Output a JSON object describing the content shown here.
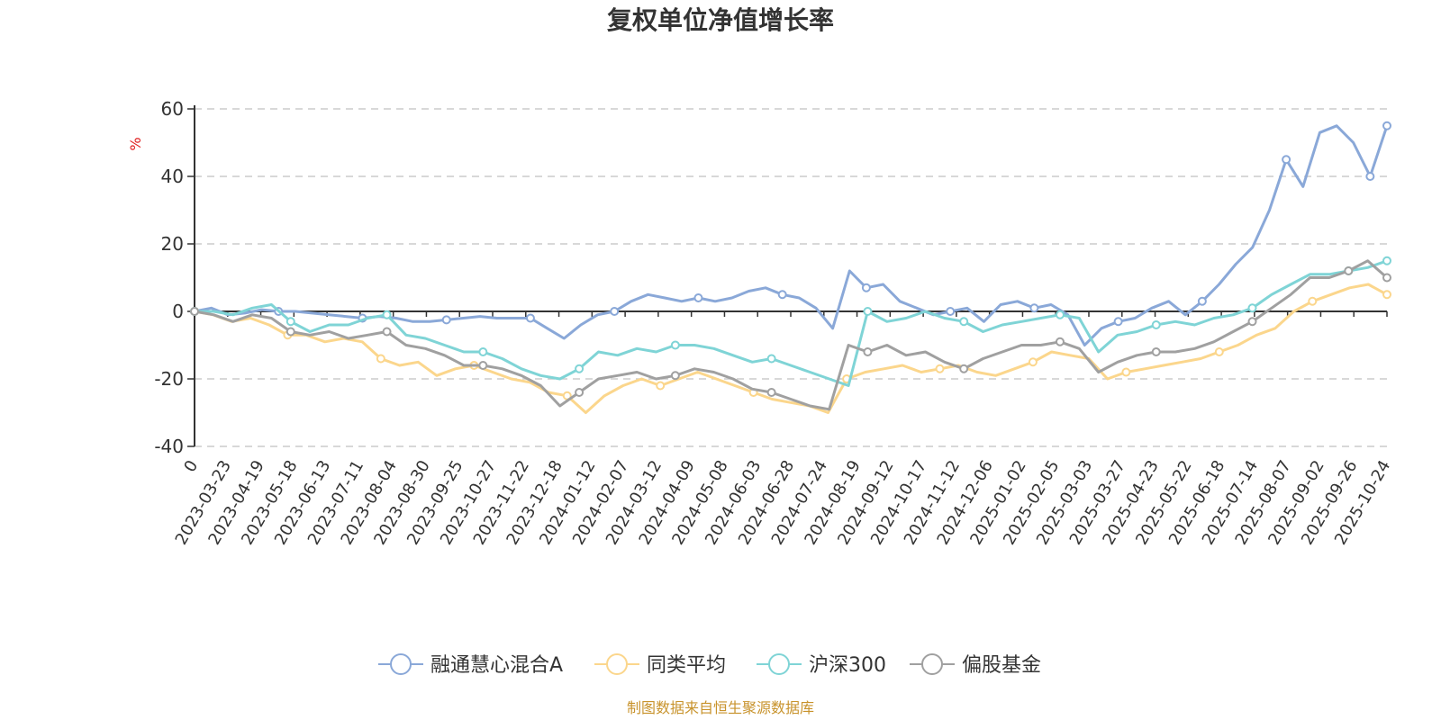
{
  "chart_data": {
    "type": "line",
    "title": "复权单位净值增长率",
    "ylabel": "%",
    "xlabel": "",
    "ylim": [
      -40,
      60
    ],
    "yticks": [
      60,
      40,
      20,
      0,
      -20,
      -40
    ],
    "x_ticks": [
      "0",
      "2023-03-23",
      "2023-04-19",
      "2023-05-18",
      "2023-06-13",
      "2023-07-11",
      "2023-08-04",
      "2023-08-30",
      "2023-09-25",
      "2023-10-27",
      "2023-11-22",
      "2023-12-18",
      "2024-01-12",
      "2024-02-07",
      "2024-03-12",
      "2024-04-09",
      "2024-05-08",
      "2024-06-03",
      "2024-06-28",
      "2024-07-24",
      "2024-08-19",
      "2024-09-12",
      "2024-10-17",
      "2024-11-12",
      "2024-12-06",
      "2025-01-02",
      "2025-02-05",
      "2025-03-03",
      "2025-03-27",
      "2025-04-23",
      "2025-05-22",
      "2025-06-18",
      "2025-07-14",
      "2025-08-07",
      "2025-09-02",
      "2025-09-26",
      "2025-10-24"
    ],
    "grid": true,
    "legend_position": "bottom",
    "series": [
      {
        "name": "融通慧心混合A",
        "color": "#8aa8d8",
        "values": [
          0,
          1,
          -1,
          -0.5,
          0.5,
          0,
          0,
          -0.5,
          -1,
          -1.5,
          -2,
          -1.5,
          -2,
          -3,
          -3,
          -2.5,
          -2,
          -1.5,
          -2,
          -2,
          -2,
          -5,
          -8,
          -4,
          -1,
          0,
          3,
          5,
          4,
          3,
          4,
          3,
          4,
          6,
          7,
          5,
          4,
          1,
          -5,
          12,
          7,
          8,
          3,
          1,
          -1,
          0,
          1,
          -3,
          2,
          3,
          1,
          2,
          -1,
          -10,
          -5,
          -3,
          -2,
          1,
          3,
          -1,
          3,
          8,
          14,
          19,
          30,
          45,
          37,
          53,
          55,
          50,
          40,
          55
        ]
      },
      {
        "name": "同类平均",
        "color": "#fbd68c",
        "values": [
          0,
          -1,
          -3,
          -2,
          -4,
          -7,
          -7,
          -9,
          -8,
          -9,
          -14,
          -16,
          -15,
          -19,
          -17,
          -16,
          -18,
          -20,
          -21,
          -24,
          -25,
          -30,
          -25,
          -22,
          -20,
          -22,
          -20,
          -18,
          -20,
          -22,
          -24,
          -26,
          -27,
          -28,
          -30,
          -20,
          -18,
          -17,
          -16,
          -18,
          -17,
          -16,
          -18,
          -19,
          -17,
          -15,
          -12,
          -13,
          -14,
          -20,
          -18,
          -17,
          -16,
          -15,
          -14,
          -12,
          -10,
          -7,
          -5,
          0,
          3,
          5,
          7,
          8,
          5
        ]
      },
      {
        "name": "沪深300",
        "color": "#7fd4d6",
        "values": [
          0,
          0,
          -1,
          1,
          2,
          -3,
          -6,
          -4,
          -4,
          -2,
          -1,
          -7,
          -8,
          -10,
          -12,
          -12,
          -14,
          -17,
          -19,
          -20,
          -17,
          -12,
          -13,
          -11,
          -12,
          -10,
          -10,
          -11,
          -13,
          -15,
          -14,
          -16,
          -18,
          -20,
          -22,
          0,
          -3,
          -2,
          0,
          -2,
          -3,
          -6,
          -4,
          -3,
          -2,
          -1,
          -2,
          -12,
          -7,
          -6,
          -4,
          -3,
          -4,
          -2,
          -1,
          1,
          5,
          8,
          11,
          11,
          12,
          13,
          15
        ]
      },
      {
        "name": "偏股基金",
        "color": "#a0a0a0",
        "values": [
          0,
          -1,
          -3,
          -1,
          -2,
          -6,
          -7,
          -6,
          -8,
          -7,
          -6,
          -10,
          -11,
          -13,
          -16,
          -16,
          -17,
          -19,
          -22,
          -28,
          -24,
          -20,
          -19,
          -18,
          -20,
          -19,
          -17,
          -18,
          -20,
          -23,
          -24,
          -26,
          -28,
          -29,
          -10,
          -12,
          -10,
          -13,
          -12,
          -15,
          -17,
          -14,
          -12,
          -10,
          -10,
          -9,
          -11,
          -18,
          -15,
          -13,
          -12,
          -12,
          -11,
          -9,
          -6,
          -3,
          1,
          5,
          10,
          10,
          12,
          15,
          10
        ]
      }
    ],
    "source_note": "制图数据来自恒生聚源数据库"
  },
  "legend": {
    "items": [
      "融通慧心混合A",
      "同类平均",
      "沪深300",
      "偏股基金"
    ]
  }
}
